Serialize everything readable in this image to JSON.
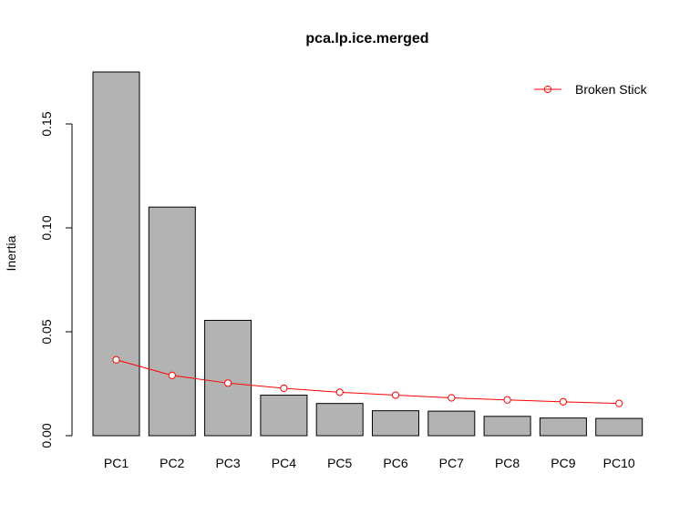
{
  "chart_data": {
    "type": "bar",
    "title": "pca.lp.ice.merged",
    "xlabel": "",
    "ylabel": "Inertia",
    "categories": [
      "PC1",
      "PC2",
      "PC3",
      "PC4",
      "PC5",
      "PC6",
      "PC7",
      "PC8",
      "PC9",
      "PC10"
    ],
    "values": [
      0.175,
      0.11,
      0.0555,
      0.0195,
      0.0155,
      0.012,
      0.0118,
      0.0093,
      0.0085,
      0.0083
    ],
    "series": [
      {
        "name": "Broken Stick",
        "type": "line",
        "values": [
          0.0365,
          0.029,
          0.0253,
          0.0228,
          0.0209,
          0.0195,
          0.0182,
          0.0172,
          0.0163,
          0.0155
        ]
      }
    ],
    "ylim": [
      0,
      0.175
    ],
    "yticks": [
      0.0,
      0.05,
      0.1,
      0.15
    ],
    "ytick_labels": [
      "0.00",
      "0.05",
      "0.10",
      "0.15"
    ],
    "legend": {
      "position": "top-right",
      "entries": [
        "Broken Stick"
      ]
    },
    "grid": false,
    "colors": {
      "bar_fill": "#b3b3b3",
      "bar_stroke": "#000000",
      "line": "#ff0000"
    }
  }
}
